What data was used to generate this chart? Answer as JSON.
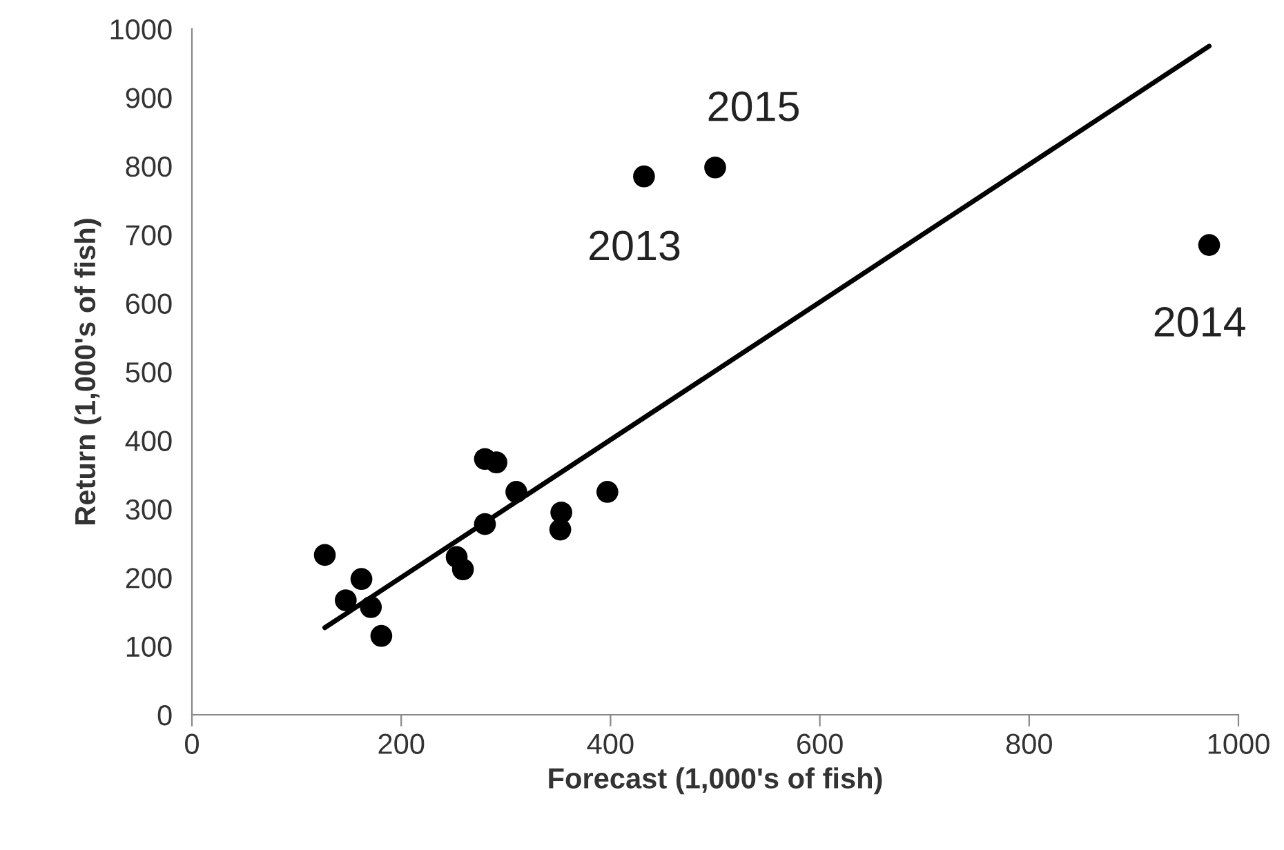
{
  "chart_data": {
    "type": "scatter",
    "xlabel": "Forecast (1,000's of fish)",
    "ylabel": "Return (1,000's of fish)",
    "xlim": [
      0,
      1000
    ],
    "xticks": [
      0,
      200,
      400,
      600,
      800,
      1000
    ],
    "ylim": [
      0,
      1000
    ],
    "yticks": [
      0,
      100,
      200,
      300,
      400,
      500,
      600,
      700,
      800,
      900,
      1000
    ],
    "grid": false,
    "legend": false,
    "marker": "circle",
    "series": [
      {
        "color": "#000000",
        "x": [
          127,
          147,
          162,
          171,
          181,
          253,
          259,
          280,
          280,
          291,
          310,
          352,
          353,
          397,
          432,
          500,
          972
        ],
        "values": [
          233,
          167,
          198,
          157,
          115,
          230,
          212,
          278,
          373,
          368,
          325,
          270,
          295,
          325,
          785,
          798,
          685
        ]
      },
      {
        "type": "line",
        "color": "#000000",
        "line_style": "solid",
        "marker": "none",
        "x": [
          127,
          972
        ],
        "values": [
          127,
          975
        ]
      }
    ],
    "annotations": [
      {
        "text": "2013",
        "x": 432,
        "y": 785
      },
      {
        "text": "2015",
        "x": 500,
        "y": 798
      },
      {
        "text": "2014",
        "x": 972,
        "y": 685
      }
    ]
  }
}
